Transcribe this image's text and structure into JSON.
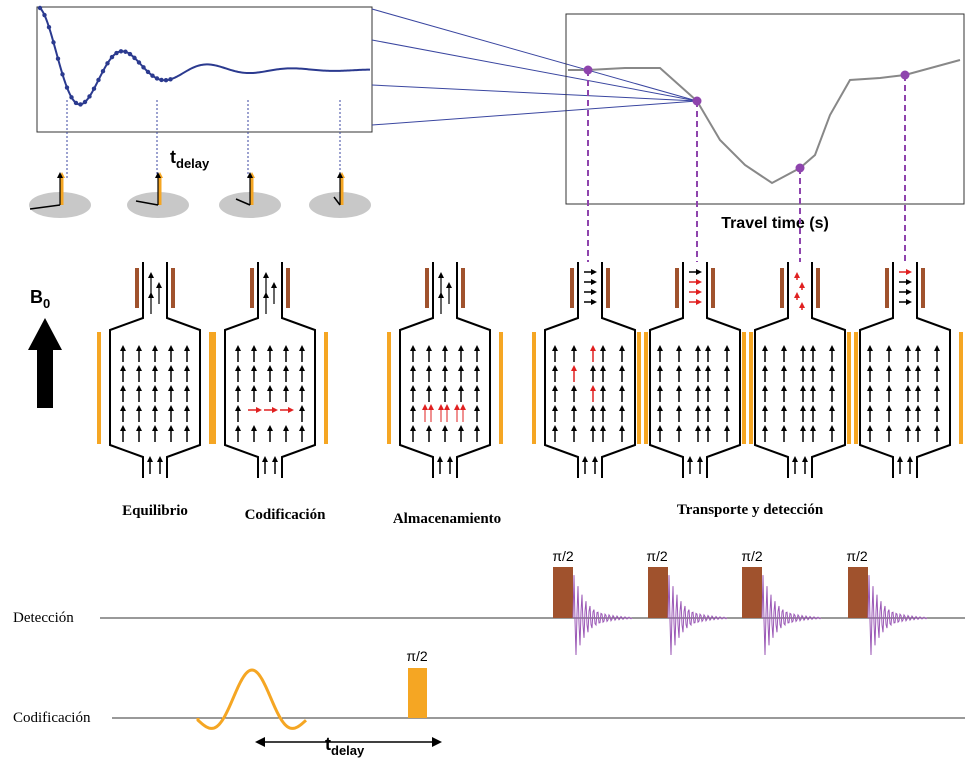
{
  "top_left": {
    "t": "t",
    "sub": "delay"
  },
  "top_right": {
    "xlabel": "Travel time (s)"
  },
  "field": {
    "label": "B",
    "sub": "0"
  },
  "stages": [
    "Equilibrio",
    "Codificación",
    "Almacenamiento",
    "Transporte y detección"
  ],
  "sequence": {
    "pulse_labels": [
      "π/2",
      "π/2",
      "π/2",
      "π/2",
      "π/2"
    ],
    "rows": [
      "Detección",
      "Codificación"
    ],
    "delay": {
      "t": "t",
      "sub": "delay"
    }
  }
}
